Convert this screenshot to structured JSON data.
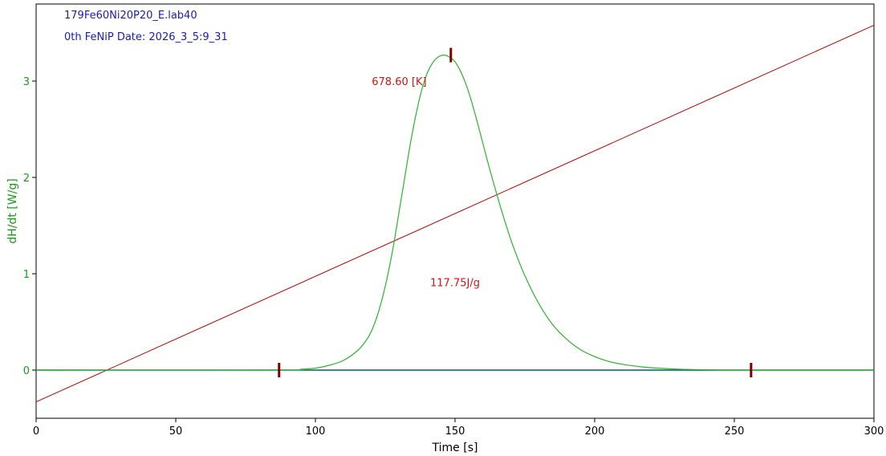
{
  "header": {
    "line1": "179Fe60Ni20P20_E.lab40",
    "line2": "0th FeNiP Date: 2026_3_5:9_31"
  },
  "colors": {
    "dsc_curve": "#2db52d",
    "baseline": "#006060",
    "temperature": "#c00000",
    "marker": "#7a0000",
    "header_text": "#1a1ac8",
    "annotation": "#e01010",
    "ylabel": "#1a9a1a",
    "axis": "#000000"
  },
  "chart_data": {
    "type": "line",
    "xlabel": "Time [s]",
    "ylabel": "dH/dt [W/g]",
    "xlim": [
      0,
      300
    ],
    "ylim": [
      -0.5,
      3.8
    ],
    "x_ticks": [
      0,
      50,
      100,
      150,
      200,
      250,
      300
    ],
    "y_ticks": [
      0,
      1,
      2,
      3
    ],
    "series": [
      {
        "kind": "dsc",
        "x": [
          0,
          87,
          95,
          100,
          105,
          110,
          115,
          118,
          120,
          122,
          124,
          126,
          128,
          130,
          132,
          134,
          136,
          138,
          140,
          142,
          144,
          146,
          148,
          150,
          152,
          154,
          156,
          158,
          160,
          162,
          165,
          168,
          171,
          175,
          180,
          185,
          190,
          195,
          200,
          205,
          210,
          215,
          220,
          230,
          240,
          256,
          300
        ],
        "y": [
          0,
          0,
          0.01,
          0.02,
          0.05,
          0.1,
          0.2,
          0.3,
          0.4,
          0.55,
          0.75,
          1.0,
          1.3,
          1.65,
          2.0,
          2.35,
          2.65,
          2.9,
          3.08,
          3.19,
          3.25,
          3.27,
          3.25,
          3.2,
          3.1,
          2.96,
          2.78,
          2.57,
          2.35,
          2.13,
          1.82,
          1.53,
          1.27,
          0.98,
          0.69,
          0.47,
          0.32,
          0.21,
          0.14,
          0.09,
          0.06,
          0.04,
          0.025,
          0.01,
          0.004,
          0,
          0
        ]
      },
      {
        "kind": "baseline",
        "x": [
          0,
          300
        ],
        "y": [
          0,
          0
        ]
      },
      {
        "kind": "temperature",
        "x": [
          0,
          300
        ],
        "y": [
          -0.33,
          3.58
        ]
      }
    ],
    "markers": [
      {
        "x": 87,
        "y": 0
      },
      {
        "x": 148.5,
        "y": 3.27
      },
      {
        "x": 256,
        "y": 0
      }
    ],
    "annotations": [
      {
        "text": "678.60 [K]",
        "x": 130,
        "y": 2.96
      },
      {
        "text": "117.75J/g",
        "x": 150,
        "y": 0.87
      }
    ]
  }
}
